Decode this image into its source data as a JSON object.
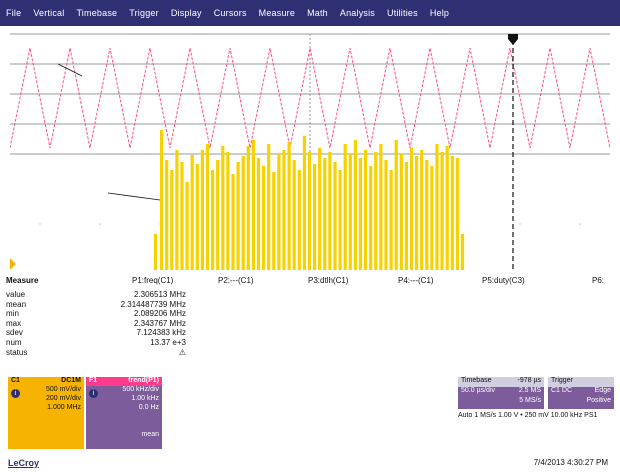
{
  "menu": [
    "File",
    "Vertical",
    "Timebase",
    "Trigger",
    "Display",
    "Cursors",
    "Measure",
    "Math",
    "Analysis",
    "Utilities",
    "Help"
  ],
  "colors": {
    "menubar": "#2f2f74",
    "ch1": "#f6b400",
    "f1": "#ff4d8f",
    "trace_f1": "#ff4d8f"
  },
  "measure": {
    "headers": [
      "Measure",
      "P1:freq(C1)",
      "P2:---(C1)",
      "P3:dtlh(C1)",
      "P4:---(C1)",
      "P5:duty(C3)",
      "P6:"
    ],
    "rows": [
      {
        "label": "value",
        "value": "2.306513 MHz"
      },
      {
        "label": "mean",
        "value": "2.314487739 MHz"
      },
      {
        "label": "min",
        "value": "2.089206 MHz"
      },
      {
        "label": "max",
        "value": "2.343767 MHz"
      },
      {
        "label": "sdev",
        "value": "7.124383 kHz"
      },
      {
        "label": "num",
        "value": "13.37 e+3"
      },
      {
        "label": "status",
        "value": "⚠"
      }
    ]
  },
  "ch1": {
    "title": "C1",
    "coupling": "DC1M",
    "lines": [
      "500 mV/div",
      "200 mV/div",
      "1.000 MHz"
    ]
  },
  "f1": {
    "title": "F1",
    "label": "trend(P1)",
    "lines": [
      "500 kHz/div",
      "1.00 kHz",
      "0.0 Hz",
      "",
      "",
      "mean"
    ]
  },
  "timebase": {
    "title": "Timebase",
    "value": "-978 µs",
    "lines": [
      "50.0 µs/div",
      "2.5 MS",
      "5 MS/s"
    ]
  },
  "trigger": {
    "title": "Trigger",
    "value": "",
    "lines": [
      "C1 DC",
      "Edge",
      "Positive"
    ]
  },
  "status_line": "Auto 1 MS/s 1.00 V  •  250 mV  10.00 kHz  PS1",
  "logo": "LeCroy",
  "datetime": "7/4/2013 4:30:27 PM"
}
